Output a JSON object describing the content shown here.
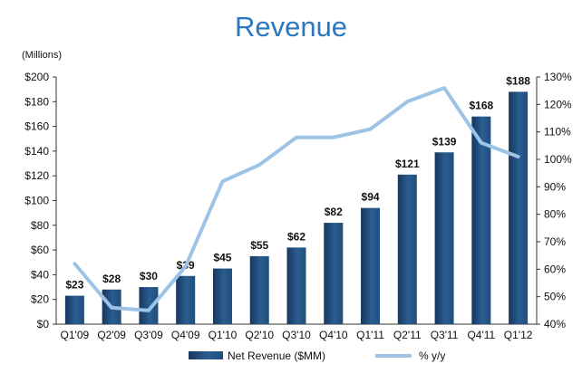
{
  "chart_data": {
    "type": "bar",
    "title": "Revenue",
    "units_label": "(Millions)",
    "categories": [
      "Q1'09",
      "Q2'09",
      "Q3'09",
      "Q4'09",
      "Q1'10",
      "Q2'10",
      "Q3'10",
      "Q4'10",
      "Q1'11",
      "Q2'11",
      "Q3'11",
      "Q4'11",
      "Q1'12"
    ],
    "data_labels": [
      "$23",
      "$28",
      "$30",
      "$39",
      "$45",
      "$55",
      "$62",
      "$82",
      "$94",
      "$121",
      "$139",
      "$168",
      "$188"
    ],
    "series": [
      {
        "name": "Net Revenue ($MM)",
        "type": "bar",
        "axis": "left",
        "color": "#1f4e79",
        "values": [
          23,
          28,
          30,
          39,
          45,
          55,
          62,
          82,
          94,
          121,
          139,
          168,
          188
        ]
      },
      {
        "name": "% y/y",
        "type": "line",
        "axis": "right",
        "color": "#9dc3e6",
        "values": [
          62,
          46,
          45,
          61,
          92,
          98,
          108,
          108,
          111,
          121,
          126,
          106,
          101
        ]
      }
    ],
    "left_axis": {
      "ylim": [
        0,
        200
      ],
      "ticks": [
        "$0",
        "$20",
        "$40",
        "$60",
        "$80",
        "$100",
        "$120",
        "$140",
        "$160",
        "$180",
        "$200"
      ]
    },
    "right_axis": {
      "ylim": [
        40,
        130
      ],
      "ticks": [
        "40%",
        "50%",
        "60%",
        "70%",
        "80%",
        "90%",
        "100%",
        "110%",
        "120%",
        "130%"
      ]
    },
    "grid": false,
    "legend_position": "bottom"
  }
}
